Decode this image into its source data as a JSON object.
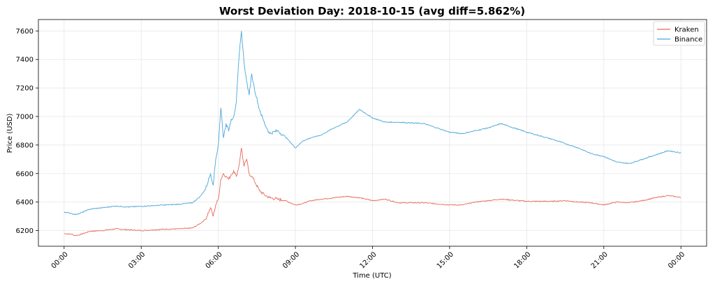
{
  "chart_data": {
    "type": "line",
    "title": "Worst Deviation Day: 2018-10-15 (avg diff=5.862%)",
    "xlabel": "Time (UTC)",
    "ylabel": "Price (USD)",
    "xlim": [
      -1,
      25
    ],
    "ylim": [
      6090,
      7680
    ],
    "xticks": [
      0,
      3,
      6,
      9,
      12,
      15,
      18,
      21,
      24
    ],
    "xtick_labels": [
      "00:00",
      "03:00",
      "06:00",
      "09:00",
      "12:00",
      "15:00",
      "18:00",
      "21:00",
      "00:00"
    ],
    "yticks": [
      6200,
      6400,
      6600,
      6800,
      7000,
      7200,
      7400,
      7600
    ],
    "ytick_labels": [
      "6200",
      "6400",
      "6600",
      "6800",
      "7000",
      "7200",
      "7400",
      "7600"
    ],
    "grid": true,
    "legend_position": "top-right",
    "series": [
      {
        "name": "Kraken",
        "color": "#e8695a",
        "x": [
          0,
          0.3,
          0.4,
          0.6,
          1,
          1.5,
          2,
          2.5,
          3,
          3.5,
          4,
          4.5,
          5,
          5.3,
          5.5,
          5.7,
          5.8,
          5.9,
          6.0,
          6.1,
          6.2,
          6.3,
          6.4,
          6.5,
          6.6,
          6.7,
          6.8,
          6.9,
          7.0,
          7.1,
          7.2,
          7.3,
          7.4,
          7.6,
          7.8,
          8.0,
          8.3,
          8.6,
          9.0,
          9.3,
          9.6,
          10,
          10.5,
          11,
          11.5,
          12,
          12.5,
          13,
          14,
          15,
          15.5,
          16,
          16.5,
          17,
          18,
          19,
          19.5,
          20,
          20.5,
          21,
          21.5,
          22,
          22.5,
          23,
          23.5,
          24
        ],
        "values": [
          6178,
          6175,
          6165,
          6170,
          6195,
          6200,
          6212,
          6205,
          6200,
          6205,
          6210,
          6212,
          6218,
          6250,
          6280,
          6360,
          6300,
          6380,
          6420,
          6560,
          6600,
          6580,
          6560,
          6590,
          6620,
          6580,
          6650,
          6780,
          6650,
          6700,
          6600,
          6580,
          6550,
          6480,
          6450,
          6430,
          6420,
          6410,
          6380,
          6390,
          6410,
          6420,
          6430,
          6440,
          6430,
          6410,
          6420,
          6395,
          6395,
          6380,
          6380,
          6400,
          6410,
          6420,
          6405,
          6405,
          6410,
          6400,
          6395,
          6380,
          6400,
          6395,
          6410,
          6430,
          6445,
          6432
        ]
      },
      {
        "name": "Binance",
        "color": "#4aa6d8",
        "x": [
          0,
          0.3,
          0.4,
          0.6,
          1,
          1.5,
          2,
          2.5,
          3,
          3.5,
          4,
          4.5,
          5,
          5.3,
          5.5,
          5.7,
          5.8,
          5.9,
          6.0,
          6.1,
          6.2,
          6.3,
          6.4,
          6.5,
          6.6,
          6.7,
          6.8,
          6.9,
          7.0,
          7.1,
          7.2,
          7.3,
          7.4,
          7.6,
          7.8,
          8.0,
          8.3,
          8.6,
          9.0,
          9.3,
          9.6,
          10,
          10.5,
          11,
          11.5,
          12,
          12.5,
          13,
          14,
          15,
          15.5,
          16,
          16.5,
          17,
          18,
          19,
          19.5,
          20,
          20.5,
          21,
          21.5,
          22,
          22.5,
          23,
          23.5,
          24
        ],
        "values": [
          6330,
          6320,
          6312,
          6320,
          6350,
          6360,
          6372,
          6365,
          6370,
          6375,
          6380,
          6385,
          6395,
          6440,
          6490,
          6600,
          6520,
          6700,
          6800,
          7060,
          6850,
          6950,
          6900,
          6980,
          7000,
          7100,
          7400,
          7600,
          7380,
          7250,
          7150,
          7300,
          7200,
          7050,
          6950,
          6880,
          6900,
          6860,
          6780,
          6830,
          6850,
          6870,
          6920,
          6960,
          7050,
          6990,
          6960,
          6960,
          6950,
          6890,
          6880,
          6900,
          6920,
          6950,
          6890,
          6840,
          6810,
          6780,
          6740,
          6720,
          6680,
          6670,
          6700,
          6730,
          6760,
          6745
        ]
      }
    ]
  }
}
